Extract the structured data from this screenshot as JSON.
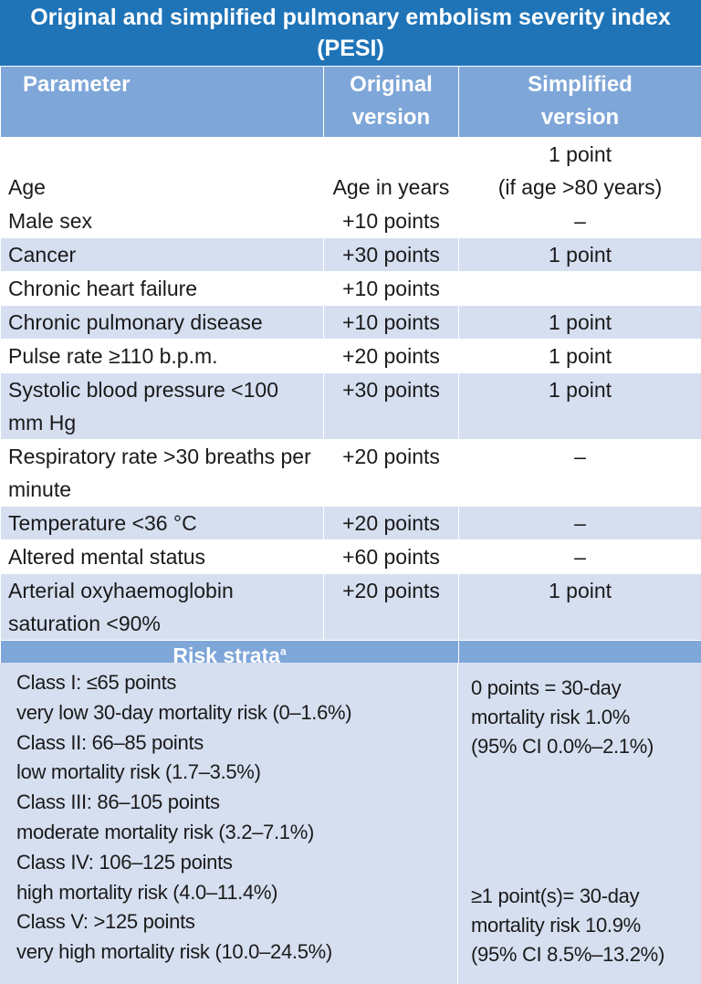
{
  "title": "Original and simplified pulmonary embolism severity index (PESI)",
  "headers": {
    "parameter": "Parameter",
    "original_line1": "Original",
    "original_line2": "version",
    "simplified_line1": "Simplified",
    "simplified_line2": "version"
  },
  "rows": [
    {
      "parameter": "Age",
      "original": "Age in years",
      "simplified_line1": "1 point",
      "simplified_line2": "(if age >80 years)"
    },
    {
      "parameter": "Male sex",
      "original": "+10 points",
      "simplified": "–"
    },
    {
      "parameter": "Cancer",
      "original": "+30 points",
      "simplified": "1 point"
    },
    {
      "parameter": "Chronic heart failure",
      "original": "+10 points",
      "simplified": ""
    },
    {
      "parameter": "Chronic pulmonary disease",
      "original": "+10 points",
      "simplified": "1 point"
    },
    {
      "parameter": "Pulse rate ≥110 b.p.m.",
      "original": "+20 points",
      "simplified": "1 point"
    },
    {
      "parameter": "Systolic blood pressure <100 mm Hg",
      "original": "+30 points",
      "simplified": "1 point"
    },
    {
      "parameter": "Respiratory rate >30 breaths per minute",
      "original": "+20 points",
      "simplified": "–"
    },
    {
      "parameter": "Temperature <36 °C",
      "original": "+20 points",
      "simplified": "–"
    },
    {
      "parameter": "Altered mental status",
      "original": "+60 points",
      "simplified": "–"
    },
    {
      "parameter": "Arterial oxyhaemoglobin saturation <90%",
      "original": "+20 points",
      "simplified": "1 point"
    }
  ],
  "risk_strata": {
    "heading": "Risk strata",
    "footnote_marker": "a",
    "original": [
      "Class I: ≤65 points",
      "very low 30-day mortality risk (0–1.6%)",
      "Class II: 66–85 points",
      "low mortality risk (1.7–3.5%)",
      "Class III: 86–105 points",
      "moderate mortality risk (3.2–7.1%)",
      "Class IV: 106–125 points",
      "high mortality risk (4.0–11.4%)",
      "Class V: >125 points",
      "very high mortality risk (10.0–24.5%)"
    ],
    "simplified_low": [
      "0 points = 30-day",
      "mortality risk 1.0%",
      "(95% CI 0.0%–2.1%)"
    ],
    "simplified_high": [
      "≥1 point(s)= 30-day",
      "mortality risk 10.9%",
      "(95% CI 8.5%–13.2%)"
    ]
  },
  "colors": {
    "title_bg": "#1f74b8",
    "header_bg": "#7ea6d8",
    "band_bg": "#d6dff0",
    "text": "#1a1a1a"
  }
}
